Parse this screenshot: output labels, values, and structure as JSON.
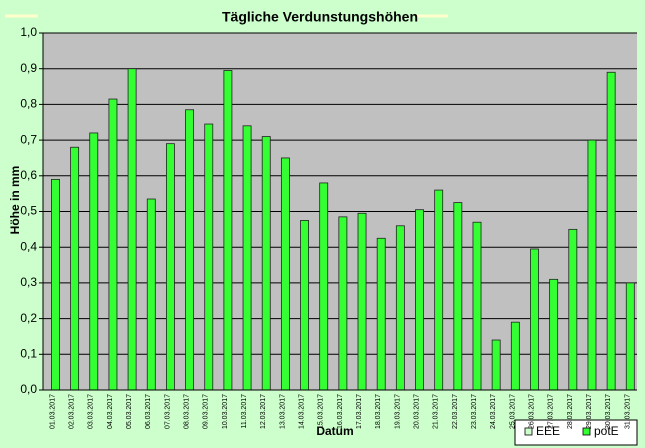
{
  "chart_data": {
    "type": "bar",
    "title": "Tägliche Verdunstungshöhen",
    "x_label": "Datum",
    "y_label": "Höhe in mm",
    "categories": [
      "01.03.2017",
      "02.03.2017",
      "03.03.2017",
      "04.03.2017",
      "05.03.2017",
      "06.03.2017",
      "07.03.2017",
      "08.03.2017",
      "09.03.2017",
      "10.03.2017",
      "11.03.2017",
      "12.03.2017",
      "13.03.2017",
      "14.03.2017",
      "15.03.2017",
      "16.03.2017",
      "17.03.2017",
      "18.03.2017",
      "19.03.2017",
      "20.03.2017",
      "21.03.2017",
      "22.03.2017",
      "23.03.2017",
      "24.03.2017",
      "25.03.2017",
      "26.03.2017",
      "27.03.2017",
      "28.03.2017",
      "29.03.2017",
      "30.03.2017",
      "31.03.2017"
    ],
    "series": [
      {
        "name": "EEE",
        "color": "#ccffcc",
        "values": [
          null,
          null,
          null,
          null,
          null,
          null,
          null,
          null,
          null,
          null,
          null,
          null,
          null,
          null,
          null,
          null,
          null,
          null,
          null,
          null,
          null,
          null,
          null,
          null,
          null,
          null,
          null,
          null,
          null,
          null,
          null
        ]
      },
      {
        "name": "potE",
        "color": "#33ff33",
        "values": [
          0.59,
          0.68,
          0.72,
          0.815,
          0.9,
          0.535,
          0.69,
          0.785,
          0.745,
          0.895,
          0.74,
          0.71,
          0.65,
          0.475,
          0.58,
          0.485,
          0.495,
          0.425,
          0.46,
          0.505,
          0.56,
          0.525,
          0.47,
          0.14,
          0.19,
          0.395,
          0.31,
          0.45,
          0.7,
          0.89,
          0.3
        ]
      }
    ],
    "ylim": [
      0,
      1
    ],
    "yticks": [
      {
        "value": 0,
        "label": "0,0"
      },
      {
        "value": 0.1,
        "label": "0,1"
      },
      {
        "value": 0.2,
        "label": "0,2"
      },
      {
        "value": 0.3,
        "label": "0,3"
      },
      {
        "value": 0.4,
        "label": "0,4"
      },
      {
        "value": 0.5,
        "label": "0,5"
      },
      {
        "value": 0.6,
        "label": "0,6"
      },
      {
        "value": 0.7,
        "label": "0,7"
      },
      {
        "value": 0.8,
        "label": "0,8"
      },
      {
        "value": 0.9,
        "label": "0,9"
      },
      {
        "value": 1,
        "label": "1,0"
      }
    ],
    "grid": true,
    "legend": "lower right"
  }
}
